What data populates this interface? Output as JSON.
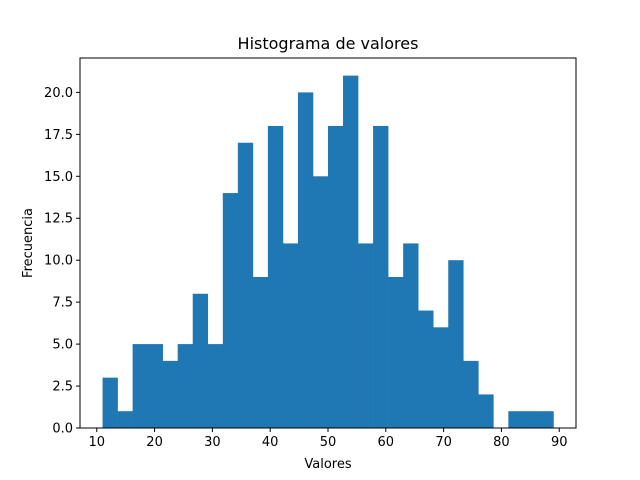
{
  "chart_data": {
    "type": "bar",
    "subtype": "histogram",
    "title": "Histograma de valores",
    "xlabel": "Valores",
    "ylabel": "Frecuencia",
    "xlim": [
      7.1,
      92.9
    ],
    "ylim": [
      0,
      22.05
    ],
    "x_ticks": [
      10,
      20,
      30,
      40,
      50,
      60,
      70,
      80,
      90
    ],
    "x_tick_labels": [
      "10",
      "20",
      "30",
      "40",
      "50",
      "60",
      "70",
      "80",
      "90"
    ],
    "y_ticks": [
      0,
      2.5,
      5,
      7.5,
      10,
      12.5,
      15,
      17.5,
      20
    ],
    "y_tick_labels": [
      "0.0",
      "2.5",
      "5.0",
      "7.5",
      "10.0",
      "12.5",
      "15.0",
      "17.5",
      "20.0"
    ],
    "bin_start": 11,
    "bin_width": 2.6,
    "values": [
      3,
      1,
      5,
      5,
      4,
      5,
      8,
      5,
      14,
      17,
      9,
      18,
      11,
      20,
      15,
      18,
      21,
      11,
      18,
      9,
      11,
      7,
      6,
      10,
      4,
      2,
      0,
      1,
      1,
      1
    ],
    "bar_color": "#1f77b4",
    "grid": false,
    "legend": "none"
  }
}
